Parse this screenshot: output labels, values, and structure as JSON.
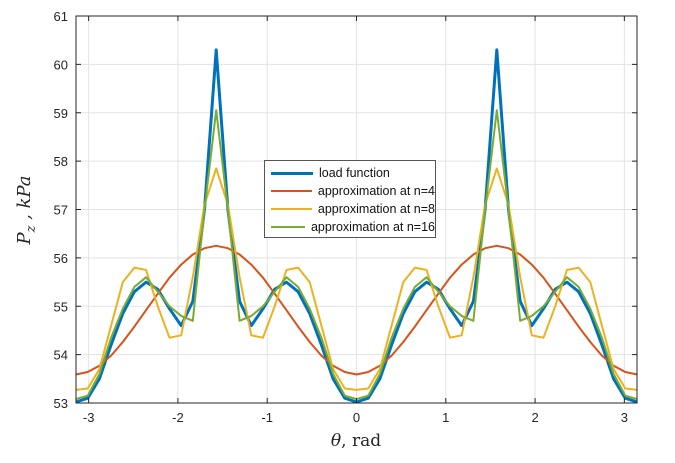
{
  "chart_data": {
    "type": "line",
    "title": "",
    "xlabel_symbol": "θ",
    "xlabel_unit": ", rad",
    "ylabel_main": "P",
    "ylabel_sub": "z",
    "ylabel_unit": " , kPa",
    "xlim": [
      -3.1416,
      3.1416
    ],
    "ylim": [
      53,
      61
    ],
    "xticks": [
      -3,
      -2,
      -1,
      0,
      1,
      2,
      3
    ],
    "yticks": [
      53,
      54,
      55,
      56,
      57,
      58,
      59,
      60,
      61
    ],
    "grid": true,
    "legend_position": "center",
    "x": [
      -3.142,
      -3.011,
      -2.88,
      -2.749,
      -2.618,
      -2.487,
      -2.356,
      -2.225,
      -2.094,
      -1.963,
      -1.833,
      -1.702,
      -1.571,
      -1.44,
      -1.309,
      -1.178,
      -1.047,
      -0.916,
      -0.785,
      -0.654,
      -0.524,
      -0.393,
      -0.262,
      -0.131,
      0,
      0.131,
      0.262,
      0.393,
      0.524,
      0.654,
      0.785,
      0.916,
      1.047,
      1.178,
      1.309,
      1.44,
      1.571,
      1.702,
      1.833,
      1.963,
      2.094,
      2.225,
      2.356,
      2.487,
      2.618,
      2.749,
      2.88,
      3.011,
      3.142
    ],
    "series": [
      {
        "name": "load function",
        "color": "#0072BD",
        "values": [
          53.02,
          53.1,
          53.5,
          54.2,
          54.85,
          55.3,
          55.5,
          55.35,
          54.95,
          54.6,
          55.1,
          57.0,
          60.3,
          57.0,
          55.1,
          54.6,
          54.95,
          55.35,
          55.5,
          55.3,
          54.85,
          54.2,
          53.5,
          53.1,
          53.02,
          53.1,
          53.5,
          54.2,
          54.85,
          55.3,
          55.5,
          55.35,
          54.95,
          54.6,
          55.1,
          57.0,
          60.3,
          57.0,
          55.1,
          54.6,
          54.95,
          55.35,
          55.5,
          55.3,
          54.85,
          54.2,
          53.5,
          53.1,
          53.02
        ]
      },
      {
        "name": "approximation at n=4",
        "color": "#D95319",
        "values": [
          53.59,
          53.64,
          53.77,
          53.98,
          54.26,
          54.58,
          54.92,
          55.26,
          55.59,
          55.86,
          56.07,
          56.2,
          56.25,
          56.2,
          56.07,
          55.86,
          55.59,
          55.26,
          54.92,
          54.58,
          54.26,
          53.98,
          53.77,
          53.64,
          53.59,
          53.64,
          53.77,
          53.98,
          54.26,
          54.58,
          54.92,
          55.26,
          55.59,
          55.86,
          56.07,
          56.2,
          56.25,
          56.2,
          56.07,
          55.86,
          55.59,
          55.26,
          54.92,
          54.58,
          54.26,
          53.98,
          53.77,
          53.64,
          53.59
        ]
      },
      {
        "name": "approximation at n=8",
        "color": "#EDB120",
        "values": [
          53.27,
          53.3,
          53.7,
          54.6,
          55.5,
          55.8,
          55.75,
          55.0,
          54.35,
          54.4,
          55.6,
          57.1,
          57.85,
          57.1,
          55.6,
          54.4,
          54.35,
          55.0,
          55.75,
          55.8,
          55.5,
          54.6,
          53.7,
          53.3,
          53.27,
          53.3,
          53.7,
          54.6,
          55.5,
          55.8,
          55.75,
          55.0,
          54.35,
          54.4,
          55.6,
          57.1,
          57.85,
          57.1,
          55.6,
          54.4,
          54.35,
          55.0,
          55.75,
          55.8,
          55.5,
          54.6,
          53.7,
          53.3,
          53.27
        ]
      },
      {
        "name": "approximation at n=16",
        "color": "#77AC30",
        "values": [
          53.08,
          53.15,
          53.6,
          54.35,
          54.95,
          55.4,
          55.6,
          55.3,
          55.0,
          54.8,
          54.7,
          57.0,
          59.05,
          57.0,
          54.7,
          54.8,
          55.0,
          55.3,
          55.6,
          55.4,
          54.95,
          54.35,
          53.6,
          53.15,
          53.08,
          53.15,
          53.6,
          54.35,
          54.95,
          55.4,
          55.6,
          55.3,
          55.0,
          54.8,
          54.7,
          57.0,
          59.05,
          57.0,
          54.7,
          54.8,
          55.0,
          55.3,
          55.6,
          55.4,
          54.95,
          54.35,
          53.6,
          53.15,
          53.08
        ]
      }
    ]
  }
}
